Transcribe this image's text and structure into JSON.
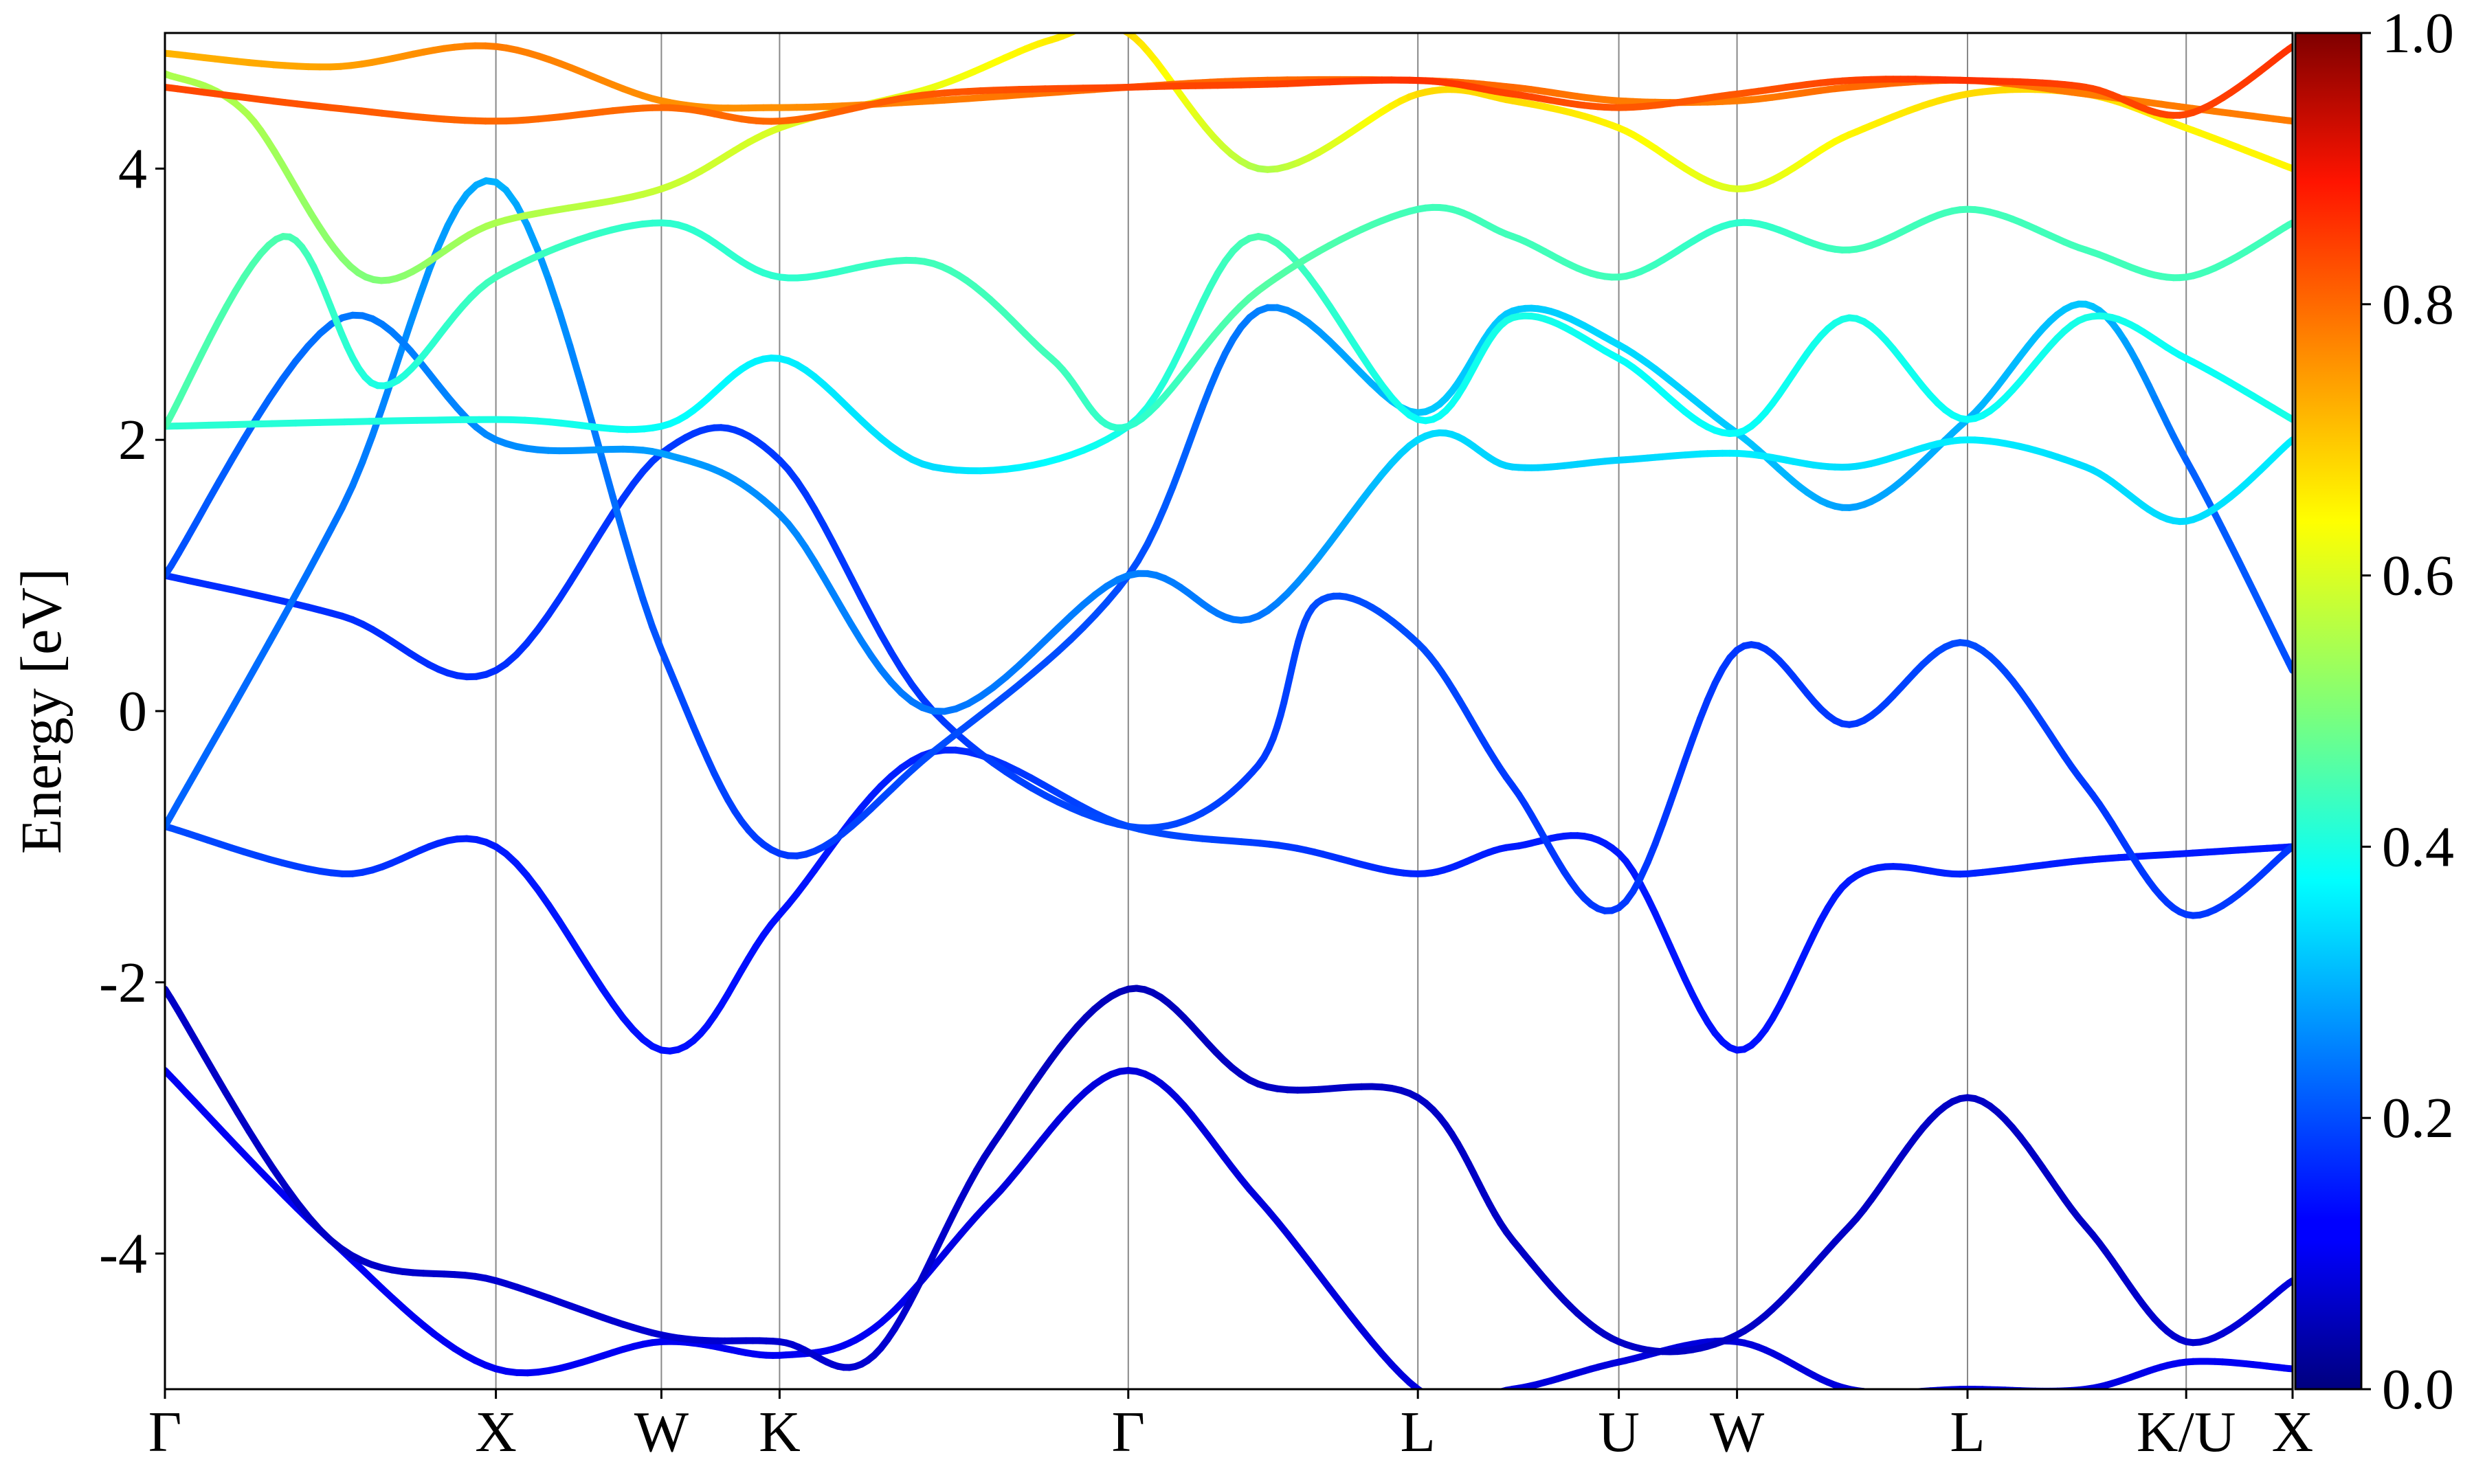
{
  "chart_data": {
    "type": "line",
    "title": "",
    "xlabel": "",
    "ylabel": "Energy [eV]",
    "ylim": [
      -5,
      5
    ],
    "xlim": [
      0,
      3.6
    ],
    "grid": "vertical lines at high-symmetry points",
    "legend": "none",
    "colormap": "jet",
    "colorbar": {
      "range": [
        0.0,
        1.0
      ],
      "ticks": [
        "0.0",
        "0.2",
        "0.4",
        "0.6",
        "0.8",
        "1.0"
      ],
      "placement": "right"
    },
    "y_ticks": [
      -4,
      -2,
      0,
      2,
      4
    ],
    "y_tick_labels": [
      "-4",
      "-2",
      "0",
      "2",
      "4"
    ],
    "k_points": [
      {
        "label": "Γ",
        "x": 0.0
      },
      {
        "label": "X",
        "x": 0.56
      },
      {
        "label": "W",
        "x": 0.84
      },
      {
        "label": "K",
        "x": 1.04
      },
      {
        "label": "Γ",
        "x": 1.63
      },
      {
        "label": "L",
        "x": 2.12
      },
      {
        "label": "U",
        "x": 2.46
      },
      {
        "label": "W",
        "x": 2.66
      },
      {
        "label": "L",
        "x": 3.05
      },
      {
        "label": "K/U",
        "x": 3.42
      },
      {
        "label": "X",
        "x": 3.6
      }
    ],
    "series": [
      {
        "x": [
          0.0,
          0.28,
          0.56,
          0.84,
          1.04,
          1.2,
          1.4,
          1.63,
          1.85,
          2.12,
          2.28,
          2.46,
          2.66,
          2.85,
          3.05,
          3.25,
          3.42,
          3.6
        ],
        "y": [
          -2.65,
          -3.9,
          -4.85,
          -4.65,
          -4.75,
          -4.55,
          -3.6,
          -2.65,
          -3.6,
          -5.0,
          -5.0,
          -4.8,
          -4.65,
          -5.0,
          -5.0,
          -5.0,
          -4.8,
          -4.85
        ],
        "weight": [
          0.1,
          0.1,
          0.1,
          0.1,
          0.1,
          0.1,
          0.08,
          0.08,
          0.08,
          0.08,
          0.08,
          0.08,
          0.08,
          0.08,
          0.08,
          0.08,
          0.1,
          0.1
        ]
      },
      {
        "x": [
          0.0,
          0.28,
          0.56,
          0.84,
          1.04,
          1.2,
          1.4,
          1.63,
          1.85,
          2.12,
          2.28,
          2.46,
          2.66,
          2.85,
          3.05,
          3.25,
          3.42,
          3.6
        ],
        "y": [
          -2.05,
          -3.9,
          -4.2,
          -4.6,
          -4.65,
          -4.75,
          -3.2,
          -2.05,
          -2.75,
          -2.85,
          -3.9,
          -4.65,
          -4.6,
          -3.8,
          -2.85,
          -3.8,
          -4.65,
          -4.2
        ],
        "weight": [
          0.06,
          0.06,
          0.07,
          0.07,
          0.07,
          0.07,
          0.06,
          0.05,
          0.06,
          0.06,
          0.06,
          0.06,
          0.06,
          0.06,
          0.06,
          0.06,
          0.07,
          0.08
        ]
      },
      {
        "x": [
          0.0,
          0.3,
          0.56,
          0.84,
          1.04,
          1.3,
          1.63,
          1.9,
          2.12,
          2.28,
          2.46,
          2.66,
          2.85,
          3.05,
          3.25,
          3.42,
          3.6
        ],
        "y": [
          -0.85,
          -1.2,
          -1.0,
          -2.5,
          -1.5,
          -0.3,
          -0.85,
          -1.0,
          -1.2,
          -1.0,
          -1.05,
          -2.5,
          -1.25,
          -1.2,
          -1.1,
          -1.05,
          -1.0
        ],
        "weight": [
          0.2,
          0.18,
          0.15,
          0.14,
          0.14,
          0.16,
          0.2,
          0.18,
          0.16,
          0.15,
          0.15,
          0.14,
          0.15,
          0.16,
          0.15,
          0.15,
          0.15
        ]
      },
      {
        "x": [
          0.0,
          0.3,
          0.56,
          0.84,
          1.04,
          1.3,
          1.63,
          1.85,
          1.95,
          2.12,
          2.28,
          2.46,
          2.66,
          2.85,
          3.05,
          3.25,
          3.42,
          3.6
        ],
        "y": [
          1.0,
          0.7,
          0.3,
          1.9,
          1.85,
          0.0,
          -0.85,
          -0.4,
          0.8,
          0.5,
          -0.55,
          -1.45,
          0.45,
          -0.1,
          0.5,
          -0.55,
          -1.5,
          -1.0
        ],
        "weight": [
          0.17,
          0.17,
          0.17,
          0.18,
          0.18,
          0.18,
          0.2,
          0.18,
          0.2,
          0.2,
          0.18,
          0.18,
          0.18,
          0.18,
          0.2,
          0.18,
          0.18,
          0.18
        ]
      },
      {
        "x": [
          0.0,
          0.3,
          0.56,
          0.84,
          1.04,
          1.3,
          1.63,
          1.85,
          2.12,
          2.28,
          2.46,
          2.66,
          2.85,
          3.05,
          3.25,
          3.42,
          3.6
        ],
        "y": [
          -0.85,
          1.5,
          3.9,
          0.45,
          -1.05,
          -0.3,
          1.0,
          2.95,
          2.2,
          2.95,
          2.7,
          2.05,
          1.5,
          2.15,
          3.0,
          1.85,
          0.3
        ],
        "weight": [
          0.22,
          0.24,
          0.3,
          0.2,
          0.18,
          0.2,
          0.2,
          0.25,
          0.32,
          0.32,
          0.34,
          0.32,
          0.28,
          0.3,
          0.32,
          0.22,
          0.2
        ]
      },
      {
        "x": [
          0.0,
          0.3,
          0.56,
          0.84,
          1.04,
          1.3,
          1.63,
          1.85,
          2.12,
          2.28,
          2.46,
          2.66,
          2.85,
          3.05,
          3.25,
          3.42,
          3.6
        ],
        "y": [
          1.0,
          2.9,
          2.0,
          1.9,
          1.45,
          0.0,
          1.0,
          0.7,
          2.0,
          1.8,
          1.85,
          1.9,
          1.8,
          2.0,
          1.8,
          1.4,
          2.0
        ],
        "weight": [
          0.2,
          0.24,
          0.26,
          0.28,
          0.26,
          0.24,
          0.25,
          0.24,
          0.34,
          0.33,
          0.33,
          0.36,
          0.34,
          0.36,
          0.34,
          0.34,
          0.36
        ]
      },
      {
        "x": [
          0.0,
          0.56,
          0.84,
          1.04,
          1.3,
          1.63,
          1.85,
          2.12,
          2.28,
          2.46,
          2.66,
          2.85,
          3.05,
          3.25,
          3.42,
          3.6
        ],
        "y": [
          2.1,
          2.15,
          2.1,
          2.6,
          1.8,
          2.1,
          3.5,
          2.15,
          2.9,
          2.6,
          2.05,
          2.9,
          2.15,
          2.9,
          2.6,
          2.15
        ],
        "weight": [
          0.42,
          0.4,
          0.38,
          0.36,
          0.34,
          0.4,
          0.45,
          0.38,
          0.4,
          0.38,
          0.38,
          0.4,
          0.38,
          0.4,
          0.38,
          0.4
        ]
      },
      {
        "x": [
          0.0,
          0.2,
          0.36,
          0.56,
          0.84,
          1.04,
          1.3,
          1.5,
          1.63,
          1.85,
          2.12,
          2.28,
          2.46,
          2.66,
          2.85,
          3.05,
          3.25,
          3.42,
          3.6
        ],
        "y": [
          2.1,
          3.5,
          2.4,
          3.2,
          3.6,
          3.2,
          3.3,
          2.6,
          2.1,
          3.1,
          3.7,
          3.5,
          3.2,
          3.6,
          3.4,
          3.7,
          3.4,
          3.2,
          3.6
        ],
        "weight": [
          0.45,
          0.45,
          0.4,
          0.44,
          0.42,
          0.42,
          0.44,
          0.44,
          0.42,
          0.46,
          0.44,
          0.44,
          0.44,
          0.42,
          0.44,
          0.44,
          0.44,
          0.44,
          0.44
        ]
      },
      {
        "x": [
          0.0,
          0.14,
          0.34,
          0.56,
          0.84,
          1.04,
          1.3,
          1.5,
          1.63,
          1.85,
          2.12,
          2.28,
          2.46,
          2.66,
          2.85,
          3.05,
          3.25,
          3.42,
          3.6
        ],
        "y": [
          4.7,
          4.4,
          3.2,
          3.6,
          3.85,
          4.3,
          4.6,
          4.95,
          5.0,
          4.0,
          4.55,
          4.5,
          4.3,
          3.85,
          4.25,
          4.55,
          4.55,
          4.3,
          4.0
        ],
        "weight": [
          0.55,
          0.55,
          0.5,
          0.55,
          0.58,
          0.6,
          0.62,
          0.66,
          0.68,
          0.55,
          0.68,
          0.68,
          0.65,
          0.6,
          0.65,
          0.68,
          0.68,
          0.65,
          0.65
        ]
      },
      {
        "x": [
          0.0,
          0.28,
          0.56,
          0.84,
          1.04,
          1.3,
          1.63,
          1.85,
          2.12,
          2.28,
          2.46,
          2.66,
          2.85,
          3.05,
          3.25,
          3.42,
          3.6
        ],
        "y": [
          4.85,
          4.75,
          4.9,
          4.5,
          4.45,
          4.5,
          4.6,
          4.65,
          4.65,
          4.6,
          4.5,
          4.5,
          4.6,
          4.65,
          4.55,
          4.45,
          4.35
        ],
        "weight": [
          0.72,
          0.74,
          0.78,
          0.76,
          0.76,
          0.78,
          0.8,
          0.8,
          0.8,
          0.8,
          0.78,
          0.78,
          0.8,
          0.8,
          0.78,
          0.78,
          0.78
        ]
      },
      {
        "x": [
          0.0,
          0.28,
          0.56,
          0.84,
          1.04,
          1.3,
          1.63,
          1.85,
          2.12,
          2.28,
          2.46,
          2.66,
          2.85,
          3.05,
          3.25,
          3.42,
          3.6
        ],
        "y": [
          4.6,
          4.45,
          4.35,
          4.45,
          4.35,
          4.55,
          4.6,
          4.62,
          4.65,
          4.55,
          4.45,
          4.55,
          4.65,
          4.65,
          4.6,
          4.4,
          4.9
        ],
        "weight": [
          0.84,
          0.82,
          0.8,
          0.8,
          0.8,
          0.82,
          0.84,
          0.84,
          0.86,
          0.84,
          0.82,
          0.82,
          0.84,
          0.86,
          0.84,
          0.84,
          0.86
        ]
      }
    ]
  }
}
